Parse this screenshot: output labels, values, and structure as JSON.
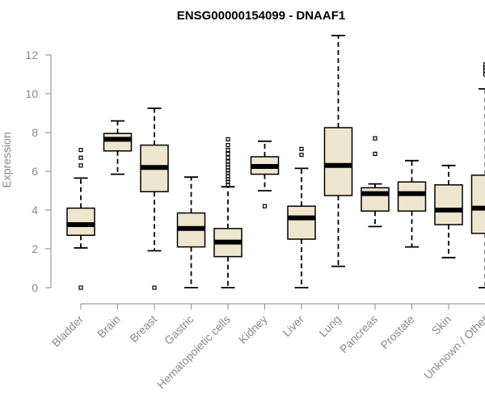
{
  "chart_data": {
    "type": "boxplot",
    "title": "ENSG00000154099 - DNAAF1",
    "xlabel": "",
    "ylabel": "Expression",
    "ylim": [
      0,
      13
    ],
    "yticks": [
      0,
      2,
      4,
      6,
      8,
      10,
      12
    ],
    "box_color": "#efe6cf",
    "categories": [
      "Bladder",
      "Brain",
      "Breast",
      "Gastric",
      "Hematopoietic cells",
      "Kidney",
      "Liver",
      "Lung",
      "Pancreas",
      "Prostate",
      "Skin",
      "Unknown / Other"
    ],
    "boxes": [
      {
        "name": "Bladder",
        "whisker_low": 2.05,
        "q1": 2.7,
        "median": 3.25,
        "q3": 4.1,
        "whisker_high": 5.65,
        "outliers": [
          0.0,
          6.3,
          6.7,
          7.1
        ]
      },
      {
        "name": "Brain",
        "whisker_low": 5.85,
        "q1": 7.05,
        "median": 7.65,
        "q3": 7.95,
        "whisker_high": 8.6,
        "outliers": []
      },
      {
        "name": "Breast",
        "whisker_low": 1.9,
        "q1": 4.95,
        "median": 6.2,
        "q3": 7.35,
        "whisker_high": 9.25,
        "outliers": [
          0.0
        ]
      },
      {
        "name": "Gastric",
        "whisker_low": 0.0,
        "q1": 2.1,
        "median": 3.05,
        "q3": 3.85,
        "whisker_high": 5.7,
        "outliers": []
      },
      {
        "name": "Hematopoietic cells",
        "whisker_low": 0.0,
        "q1": 1.6,
        "median": 2.35,
        "q3": 3.05,
        "whisker_high": 5.2,
        "outliers": [
          5.3,
          5.45,
          5.6,
          5.75,
          5.9,
          6.05,
          6.2,
          6.35,
          6.5,
          6.7,
          6.9,
          7.1,
          7.35,
          7.65
        ]
      },
      {
        "name": "Kidney",
        "whisker_low": 5.0,
        "q1": 5.85,
        "median": 6.25,
        "q3": 6.75,
        "whisker_high": 7.55,
        "outliers": [
          4.2
        ]
      },
      {
        "name": "Liver",
        "whisker_low": 0.0,
        "q1": 2.5,
        "median": 3.6,
        "q3": 4.2,
        "whisker_high": 6.15,
        "outliers": [
          6.85,
          7.15
        ]
      },
      {
        "name": "Lung",
        "whisker_low": 1.1,
        "q1": 4.75,
        "median": 6.3,
        "q3": 8.25,
        "whisker_high": 13.0,
        "outliers": []
      },
      {
        "name": "Pancreas",
        "whisker_low": 3.15,
        "q1": 3.95,
        "median": 4.85,
        "q3": 5.15,
        "whisker_high": 5.35,
        "outliers": [
          6.9,
          7.7
        ]
      },
      {
        "name": "Prostate",
        "whisker_low": 2.1,
        "q1": 3.95,
        "median": 4.85,
        "q3": 5.45,
        "whisker_high": 6.55,
        "outliers": []
      },
      {
        "name": "Skin",
        "whisker_low": 1.55,
        "q1": 3.25,
        "median": 4.0,
        "q3": 5.3,
        "whisker_high": 6.3,
        "outliers": []
      },
      {
        "name": "Unknown / Other",
        "whisker_low": 0.0,
        "q1": 2.8,
        "median": 4.1,
        "q3": 5.8,
        "whisker_high": 10.25,
        "outliers": [
          11.0,
          11.2,
          11.35,
          11.5
        ]
      }
    ]
  }
}
